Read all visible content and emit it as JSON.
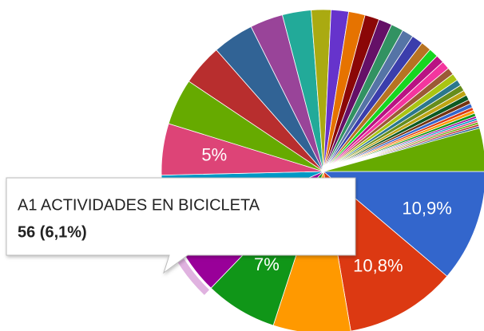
{
  "chart_data": {
    "type": "pie",
    "categories": [
      null,
      null,
      null,
      null,
      "A1 ACTIVIDADES EN BICICLETA",
      null,
      null,
      null,
      null,
      null,
      null,
      null,
      null,
      null,
      null,
      null,
      null,
      null,
      null,
      null,
      null,
      null,
      null,
      null,
      null,
      null,
      null,
      null,
      null,
      null,
      null,
      null,
      null,
      null,
      null,
      null,
      null,
      null,
      null,
      null,
      null,
      null
    ],
    "values": [
      10.9,
      10.8,
      7.5,
      7,
      6.1,
      6,
      5,
      4.5,
      4,
      4,
      3.2,
      2.8,
      1.9,
      1.7,
      1.6,
      1.4,
      1.3,
      1.2,
      1.1,
      1.1,
      1,
      0.9,
      0.8,
      0.8,
      0.7,
      0.7,
      0.6,
      0.6,
      0.5,
      0.5,
      0.4,
      0.4,
      0.3,
      0.3,
      0.3,
      0.2,
      0.2,
      0.2,
      0.2,
      0.2,
      0.2,
      4.2
    ],
    "value_labels": [
      "10,9%",
      "10,8%",
      null,
      "7%",
      null,
      null,
      "5%",
      null,
      null,
      null,
      null,
      null,
      null,
      null,
      null,
      null,
      null,
      null,
      null,
      null,
      null,
      null,
      null,
      null,
      null,
      null,
      null,
      null,
      null,
      null,
      null,
      null,
      null,
      null,
      null,
      null,
      null,
      null,
      null,
      null,
      null,
      null
    ],
    "colors": [
      "#3366cc",
      "#dc3912",
      "#ff9900",
      "#109618",
      "#990099",
      "#0099c6",
      "#dd4477",
      "#66aa00",
      "#b82e2e",
      "#316395",
      "#994499",
      "#22aa99",
      "#aaaa11",
      "#6633cc",
      "#e67300",
      "#8b0707",
      "#651067",
      "#329262",
      "#5574a6",
      "#3b3eac",
      "#b77322",
      "#16d620",
      "#b91383",
      "#f4359e",
      "#9c5935",
      "#a9c413",
      "#2a778d",
      "#668d1c",
      "#bea413",
      "#0c5922",
      "#743411",
      "#3366cc",
      "#dc3912",
      "#ff9900",
      "#109618",
      "#990099",
      "#0099c6",
      "#dd4477",
      "#66aa00",
      "#b82e2e",
      "#316395",
      "#66aa00"
    ],
    "tooltip": {
      "title": "A1 ACTIVIDADES EN BICICLETA",
      "text": "56 (6,1%)"
    },
    "highlight": 4
  }
}
